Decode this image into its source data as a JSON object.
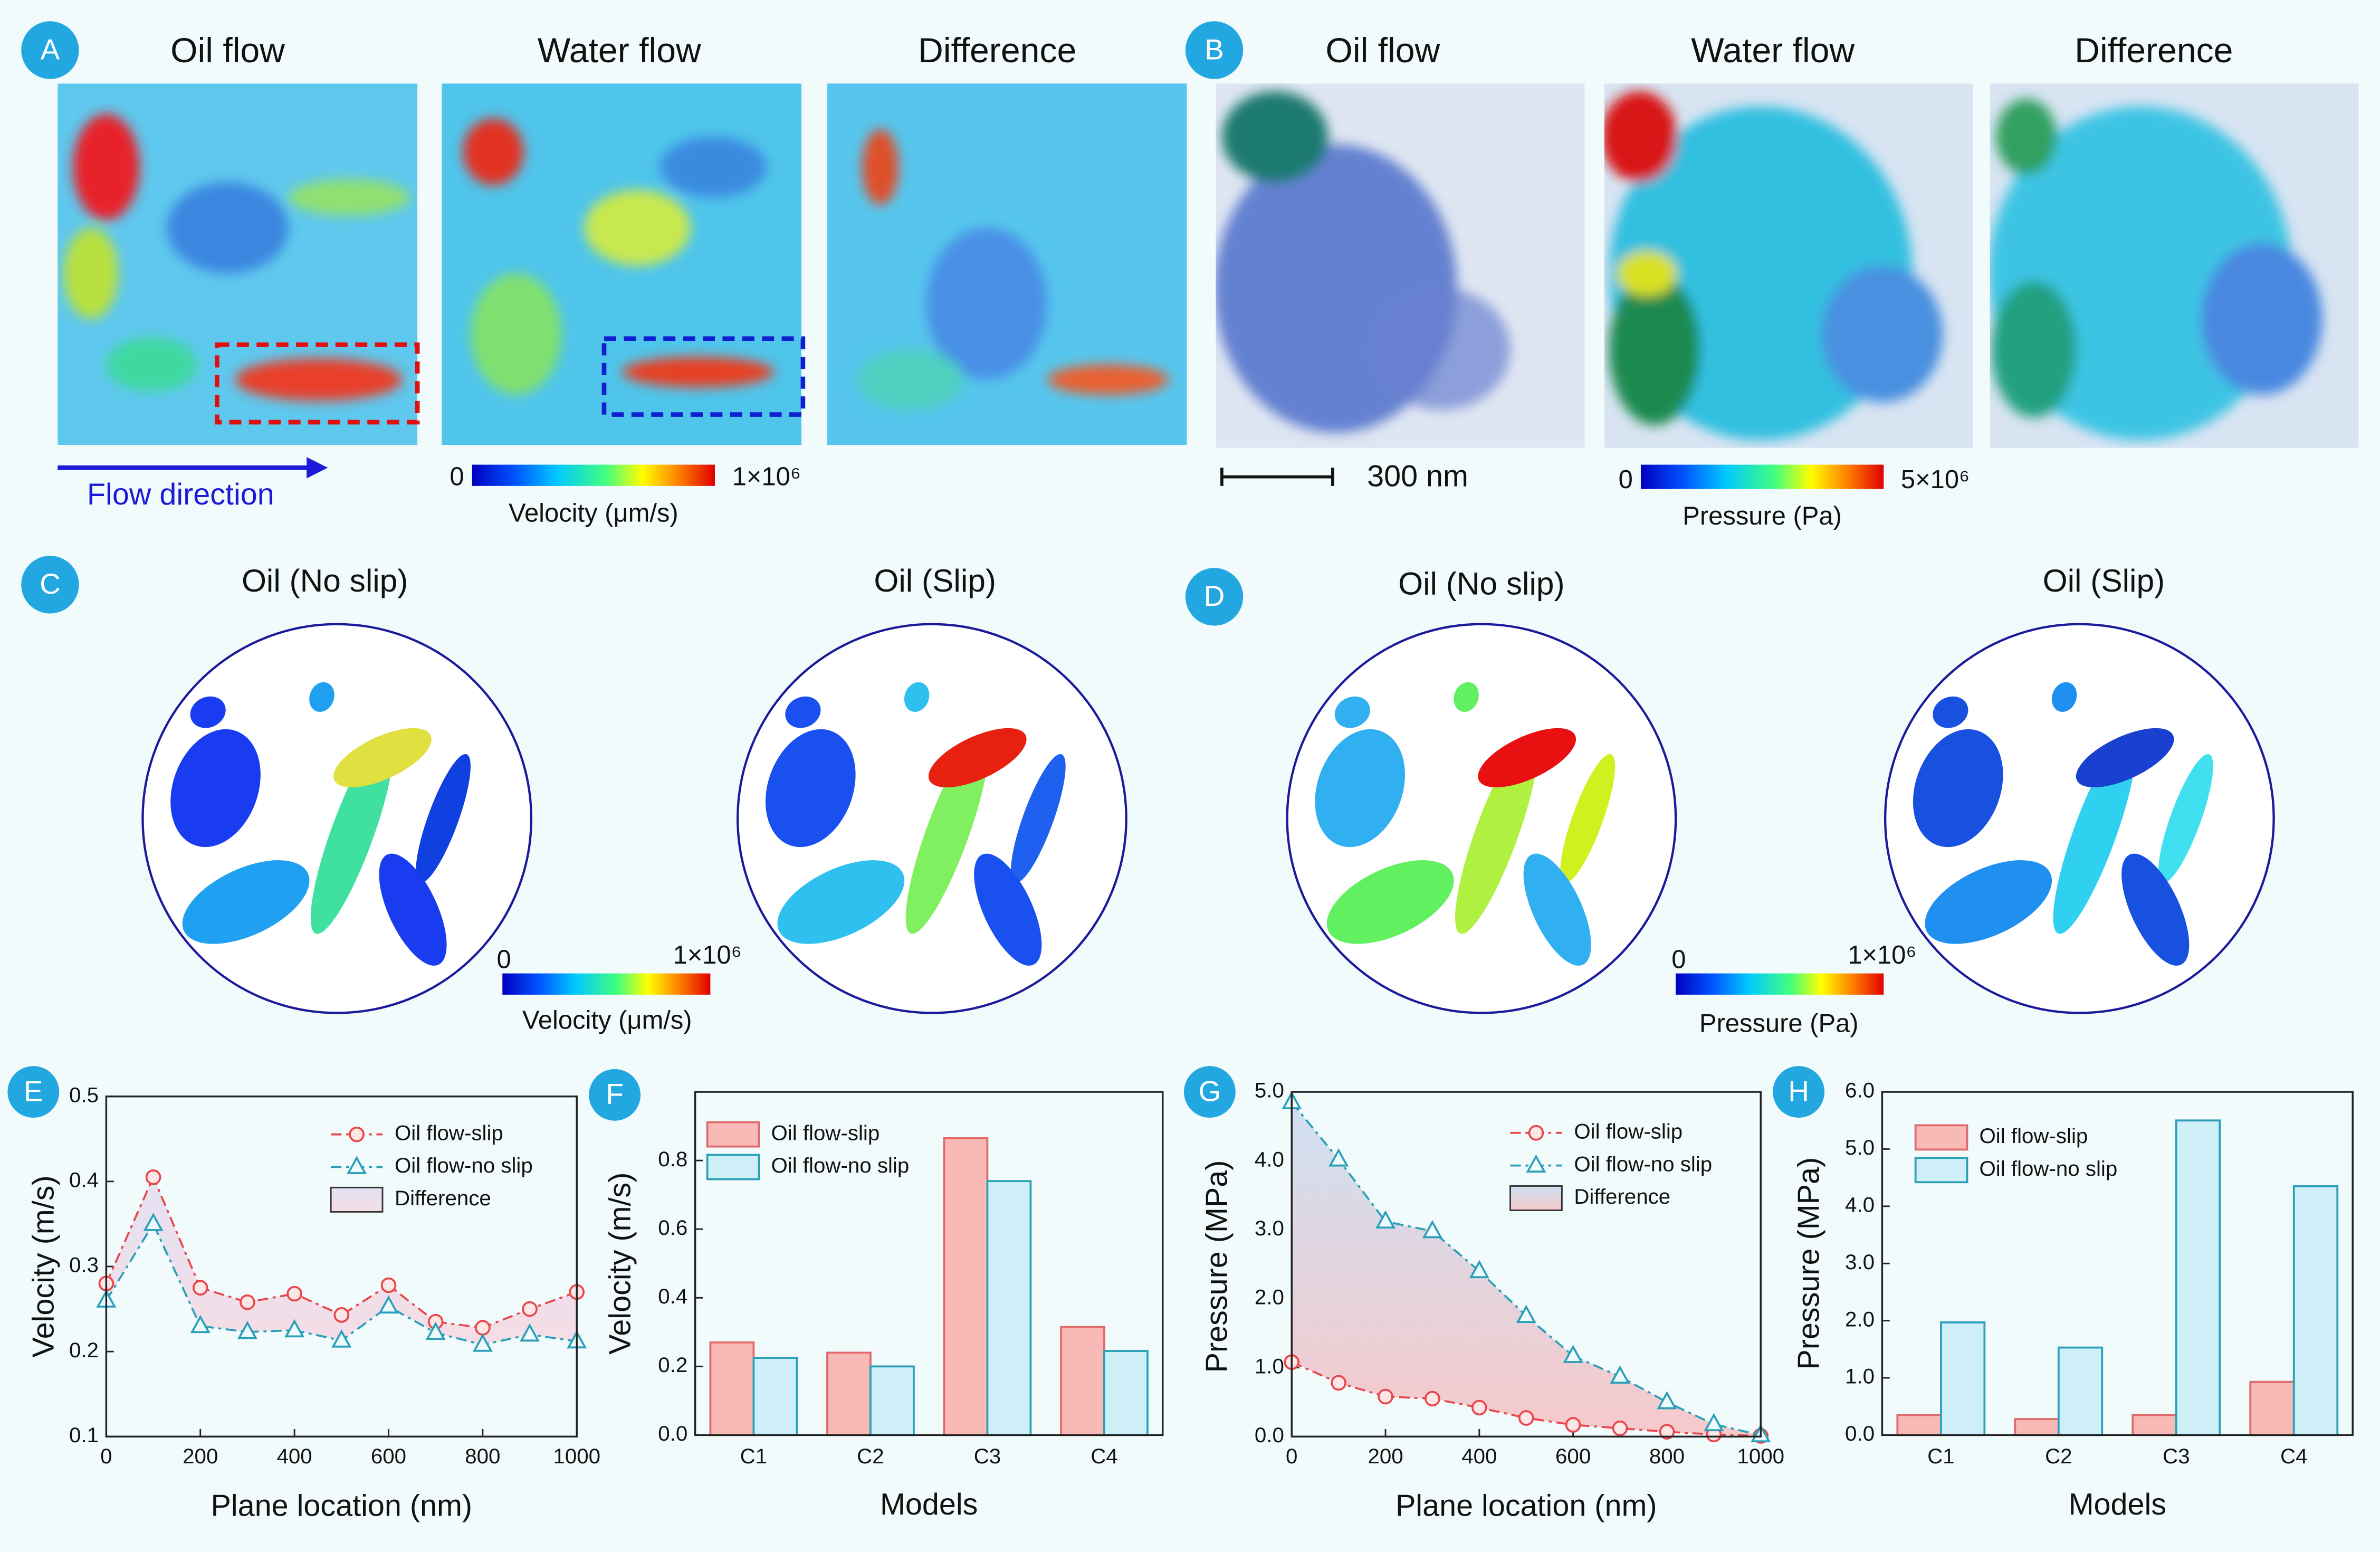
{
  "panels": {
    "A": {
      "letter": "A",
      "titles": [
        "Oil flow",
        "Water flow",
        "Difference"
      ],
      "annotation": "Flow direction",
      "colorbar": {
        "min": "0",
        "max": "1×10⁶",
        "label": "Velocity (μm/s)"
      }
    },
    "B": {
      "letter": "B",
      "titles": [
        "Oil flow",
        "Water flow",
        "Difference"
      ],
      "scale_bar": "300 nm",
      "colorbar": {
        "min": "0",
        "max": "5×10⁶",
        "label": "Pressure (Pa)"
      }
    },
    "C": {
      "letter": "C",
      "titles": [
        "Oil (No slip)",
        "Oil (Slip)"
      ],
      "colorbar": {
        "min": "0",
        "max": "1×10⁶",
        "label": "Velocity (μm/s)"
      }
    },
    "D": {
      "letter": "D",
      "titles": [
        "Oil (No slip)",
        "Oil (Slip)"
      ],
      "colorbar": {
        "min": "0",
        "max": "1×10⁶",
        "label": "Pressure (Pa)"
      }
    }
  },
  "chart_data": [
    {
      "type": "line",
      "label": "E",
      "xlabel": "Plane location (nm)",
      "ylabel": "Velocity (m/s)",
      "x": [
        0,
        100,
        200,
        300,
        400,
        500,
        600,
        700,
        800,
        900,
        1000
      ],
      "series": [
        {
          "name": "Oil flow-slip",
          "color": "#e8474c",
          "marker": "circle",
          "values": [
            0.28,
            0.405,
            0.275,
            0.258,
            0.268,
            0.243,
            0.278,
            0.235,
            0.228,
            0.25,
            0.27
          ]
        },
        {
          "name": "Oil flow-no slip",
          "color": "#2a9fb8",
          "marker": "triangle",
          "values": [
            0.26,
            0.35,
            0.23,
            0.223,
            0.225,
            0.213,
            0.253,
            0.222,
            0.208,
            0.22,
            0.212
          ]
        }
      ],
      "fill_between": {
        "name": "Difference",
        "colors": [
          "#e4e2f3",
          "#f5dde6"
        ]
      },
      "xlim": [
        0,
        1000
      ],
      "xticks": [
        0,
        200,
        400,
        600,
        800,
        1000
      ],
      "ylim": [
        0.1,
        0.5
      ],
      "yticks": [
        0.1,
        0.2,
        0.3,
        0.4,
        0.5
      ]
    },
    {
      "type": "bar",
      "label": "F",
      "xlabel": "Models",
      "ylabel": "Velocity (m/s)",
      "categories": [
        "C1",
        "C2",
        "C3",
        "C4"
      ],
      "series": [
        {
          "name": "Oil flow-slip",
          "color": "#f8b9b7",
          "edge": "#e06a6a",
          "values": [
            0.27,
            0.24,
            0.865,
            0.315
          ]
        },
        {
          "name": "Oil flow-no slip",
          "color": "#ceeef8",
          "edge": "#2a9fb8",
          "values": [
            0.225,
            0.2,
            0.74,
            0.245
          ]
        }
      ],
      "ylim": [
        0,
        1.0
      ],
      "yticks": [
        {
          "value": 0,
          "label": "0.0"
        },
        0.2,
        0.4,
        0.6,
        0.8
      ]
    },
    {
      "type": "line",
      "label": "G",
      "xlabel": "Plane location (nm)",
      "ylabel": "Pressure (MPa)",
      "x": [
        0,
        100,
        200,
        300,
        400,
        500,
        600,
        700,
        800,
        900,
        1000
      ],
      "series": [
        {
          "name": "Oil flow-slip",
          "color": "#e8474c",
          "marker": "circle",
          "values": [
            1.08,
            0.78,
            0.58,
            0.55,
            0.42,
            0.27,
            0.17,
            0.12,
            0.07,
            0.03,
            0.01
          ]
        },
        {
          "name": "Oil flow-no slip",
          "color": "#2a9fb8",
          "marker": "triangle",
          "values": [
            4.85,
            4.02,
            3.12,
            2.98,
            2.4,
            1.75,
            1.17,
            0.87,
            0.5,
            0.18,
            0.02
          ]
        }
      ],
      "fill_between": {
        "name": "Difference",
        "colors": [
          "#cfe0f2",
          "#f6c9cb"
        ]
      },
      "xlim": [
        0,
        1000
      ],
      "xticks": [
        0,
        200,
        400,
        600,
        800,
        1000
      ],
      "ylim": [
        0,
        5.0
      ],
      "yticks": [
        {
          "value": 0,
          "label": "0.0"
        },
        {
          "value": 1,
          "label": "1.0"
        },
        {
          "value": 2,
          "label": "2.0"
        },
        {
          "value": 3,
          "label": "3.0"
        },
        {
          "value": 4,
          "label": "4.0"
        },
        {
          "value": 5,
          "label": "5.0"
        }
      ]
    },
    {
      "type": "bar",
      "label": "H",
      "xlabel": "Models",
      "ylabel": "Pressure (MPa)",
      "categories": [
        "C1",
        "C2",
        "C3",
        "C4"
      ],
      "series": [
        {
          "name": "Oil flow-slip",
          "color": "#f8b9b7",
          "edge": "#e06a6a",
          "values": [
            0.35,
            0.28,
            0.35,
            0.93
          ]
        },
        {
          "name": "Oil flow-no slip",
          "color": "#ceeef8",
          "edge": "#2a9fb8",
          "values": [
            1.97,
            1.53,
            5.5,
            4.35
          ]
        }
      ],
      "ylim": [
        0,
        6.0
      ],
      "yticks": [
        {
          "value": 0,
          "label": "0.0"
        },
        {
          "value": 1,
          "label": "1.0"
        },
        {
          "value": 2,
          "label": "2.0"
        },
        {
          "value": 3,
          "label": "3.0"
        },
        {
          "value": 4,
          "label": "4.0"
        },
        {
          "value": 5,
          "label": "5.0"
        },
        {
          "value": 6,
          "label": "6.0"
        }
      ]
    }
  ]
}
